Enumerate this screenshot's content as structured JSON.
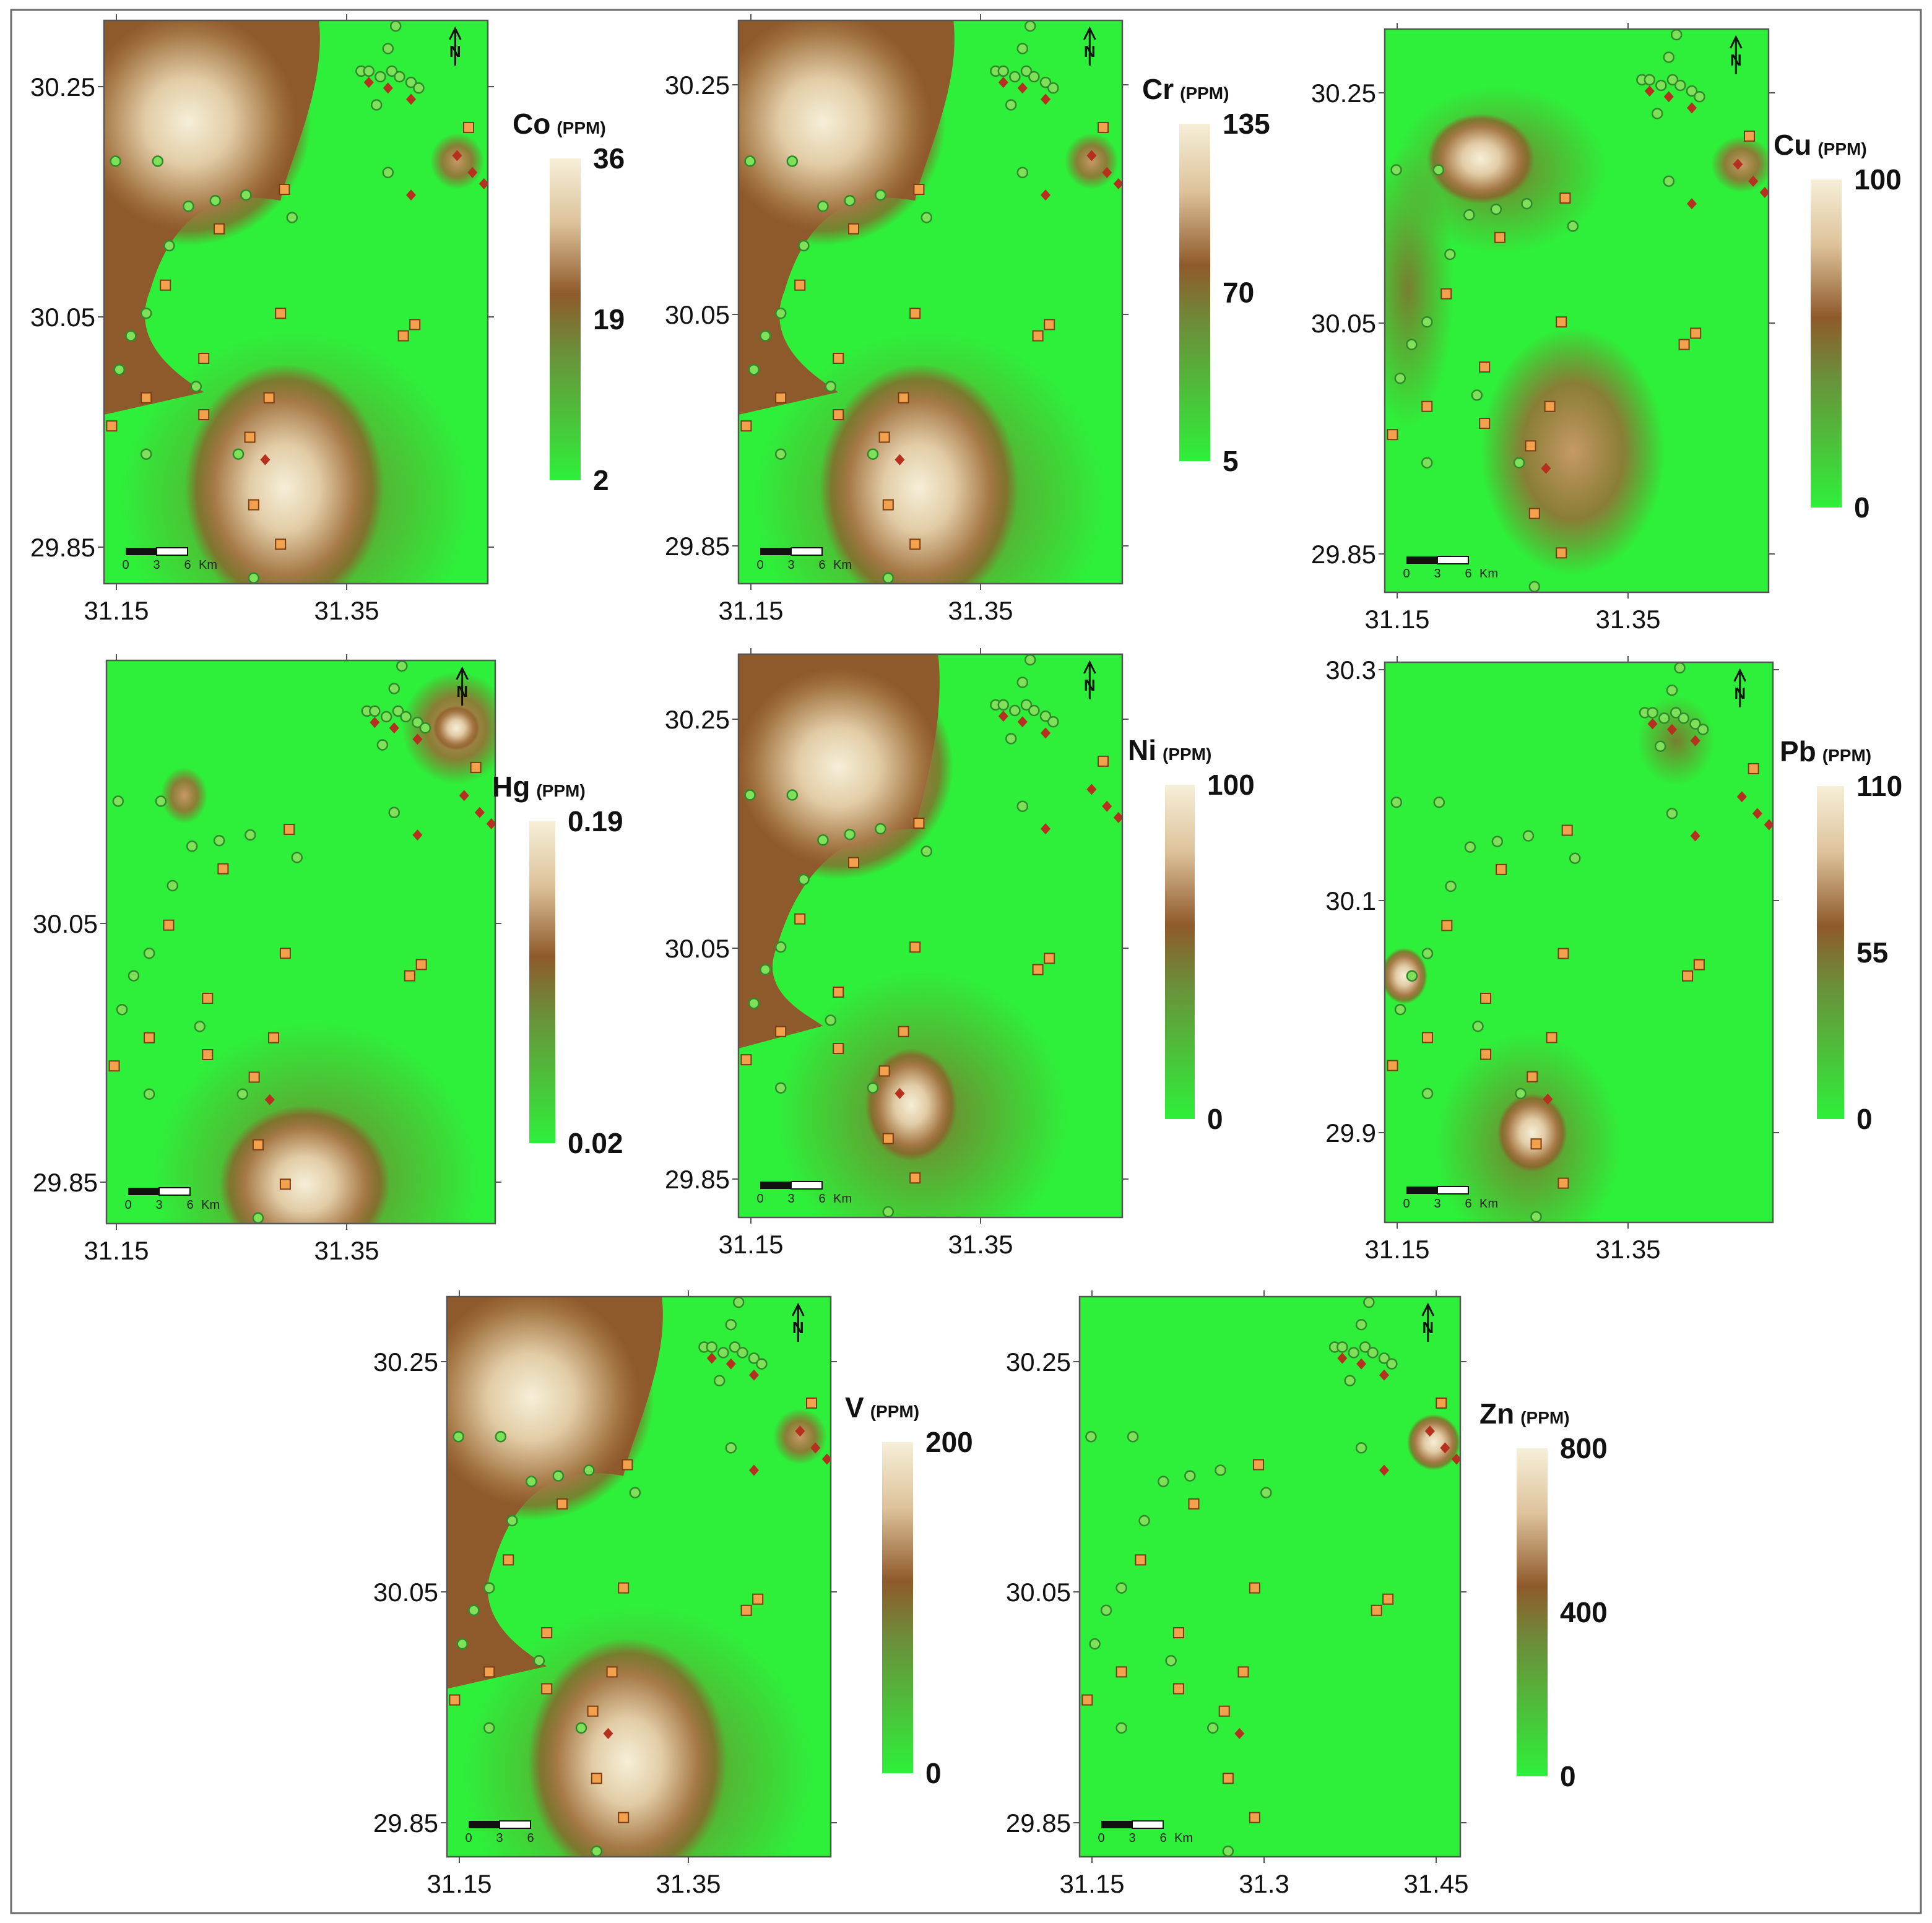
{
  "figure": {
    "panels": [
      {
        "id": "co",
        "element": "Co",
        "unit": "(PPM)",
        "legend_values": [
          "36",
          "19",
          "2"
        ],
        "y_ticks": [
          "30.25",
          "30.05",
          "29.85"
        ],
        "x_ticks": [
          "31.15",
          "31.35"
        ],
        "scalebar": [
          "0",
          "3",
          "6",
          "Km"
        ],
        "north_symbol": "N"
      },
      {
        "id": "cr",
        "element": "Cr",
        "unit": "(PPM)",
        "legend_values": [
          "135",
          "70",
          "5"
        ],
        "y_ticks": [
          "30.25",
          "30.05",
          "29.85"
        ],
        "x_ticks": [
          "31.15",
          "31.35"
        ],
        "scalebar": [
          "0",
          "3",
          "6",
          "Km"
        ],
        "north_symbol": "N"
      },
      {
        "id": "cu",
        "element": "Cu",
        "unit": "(PPM)",
        "legend_values": [
          "100",
          "0"
        ],
        "y_ticks": [
          "30.25",
          "30.05",
          "29.85"
        ],
        "x_ticks": [
          "31.15",
          "31.35"
        ],
        "scalebar": [
          "0",
          "3",
          "6",
          "Km"
        ],
        "north_symbol": "N"
      },
      {
        "id": "hg",
        "element": "Hg",
        "unit": "(PPM)",
        "legend_values": [
          "0.19",
          "0.02"
        ],
        "y_ticks": [
          "30.05",
          "29.85"
        ],
        "x_ticks": [
          "31.15",
          "31.35"
        ],
        "scalebar": [
          "0",
          "3",
          "6",
          "Km"
        ],
        "north_symbol": "N"
      },
      {
        "id": "ni",
        "element": "Ni",
        "unit": "(PPM)",
        "legend_values": [
          "100",
          "0"
        ],
        "y_ticks": [
          "30.25",
          "30.05",
          "29.85"
        ],
        "x_ticks": [
          "31.15",
          "31.35"
        ],
        "scalebar": [
          "0",
          "3",
          "6",
          "Km"
        ],
        "north_symbol": "N"
      },
      {
        "id": "pb",
        "element": "Pb",
        "unit": "(PPM)",
        "legend_values": [
          "110",
          "55",
          "0"
        ],
        "y_ticks": [
          "30.3",
          "30.1",
          "29.9"
        ],
        "x_ticks": [
          "31.15",
          "31.35"
        ],
        "scalebar": [
          "0",
          "3",
          "6",
          "Km"
        ],
        "north_symbol": "N"
      },
      {
        "id": "v",
        "element": "V",
        "unit": "(PPM)",
        "legend_values": [
          "200",
          "0"
        ],
        "y_ticks": [
          "30.25",
          "30.05",
          "29.85"
        ],
        "x_ticks": [
          "31.15",
          "31.35"
        ],
        "scalebar": [
          "0",
          "3",
          "6"
        ],
        "north_symbol": "N"
      },
      {
        "id": "zn",
        "element": "Zn",
        "unit": "(PPM)",
        "legend_values": [
          "800",
          "400",
          "0"
        ],
        "y_ticks": [
          "30.25",
          "30.05",
          "29.85"
        ],
        "x_ticks": [
          "31.15",
          "31.3",
          "31.45"
        ],
        "scalebar": [
          "0",
          "3",
          "6",
          "Km"
        ],
        "north_symbol": "N"
      }
    ],
    "colors": {
      "low": "#2ef03a",
      "mid": "#8f5a2b",
      "high": "#f6efd8",
      "marker_circle": "#3fcf3a",
      "marker_square": "#f2a24c",
      "marker_diamond": "#b5301f"
    }
  }
}
